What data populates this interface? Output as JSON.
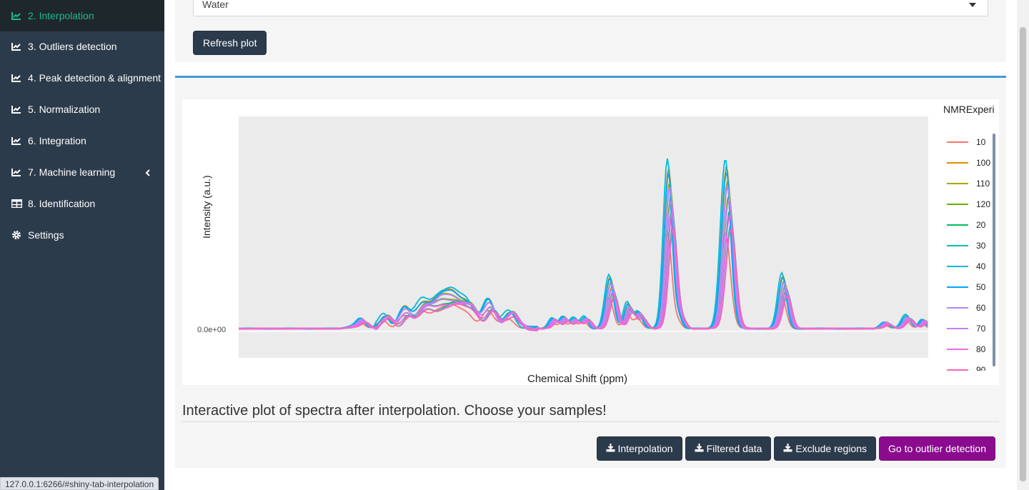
{
  "sidebar": {
    "items": [
      {
        "label": "2. Interpolation",
        "icon": "chart-line-icon",
        "active": true
      },
      {
        "label": "3. Outliers detection",
        "icon": "chart-line-icon"
      },
      {
        "label": "4. Peak detection & alignment",
        "icon": "chart-line-icon"
      },
      {
        "label": "5. Normalization",
        "icon": "chart-line-icon"
      },
      {
        "label": "6. Integration",
        "icon": "chart-line-icon"
      },
      {
        "label": "7. Machine learning",
        "icon": "chart-line-icon",
        "expandable": true
      },
      {
        "label": "8. Identification",
        "icon": "table-icon"
      },
      {
        "label": "Settings",
        "icon": "gear-icon"
      }
    ],
    "status_url": "127.0.0.1:6266/#shiny-tab-interpolation"
  },
  "controls": {
    "select_value": "Water",
    "refresh_label": "Refresh plot"
  },
  "chart_data": {
    "type": "line",
    "xlabel": "Chemical Shift (ppm)",
    "ylabel": "Intensity (a.u.)",
    "ytick": "0.0e+00",
    "legend_title": "NMRExperi",
    "legend_position": "right",
    "series": [
      {
        "name": "10",
        "color": "#f8766d"
      },
      {
        "name": "100",
        "color": "#db8e00"
      },
      {
        "name": "110",
        "color": "#aea200"
      },
      {
        "name": "120",
        "color": "#64b200"
      },
      {
        "name": "20",
        "color": "#00bd5c"
      },
      {
        "name": "30",
        "color": "#00c1a7"
      },
      {
        "name": "40",
        "color": "#00bade"
      },
      {
        "name": "50",
        "color": "#00a6ff"
      },
      {
        "name": "60",
        "color": "#b385ff"
      },
      {
        "name": "70",
        "color": "#c77cff"
      },
      {
        "name": "80",
        "color": "#ef67eb"
      },
      {
        "name": "90",
        "color": "#ff63b6"
      }
    ]
  },
  "caption": "Interactive plot of spectra after interpolation. Choose your samples!",
  "actions": {
    "interpolation": "Interpolation",
    "filtered": "Filtered data",
    "exclude": "Exclude regions",
    "go_outlier": "Go to outlier detection"
  }
}
